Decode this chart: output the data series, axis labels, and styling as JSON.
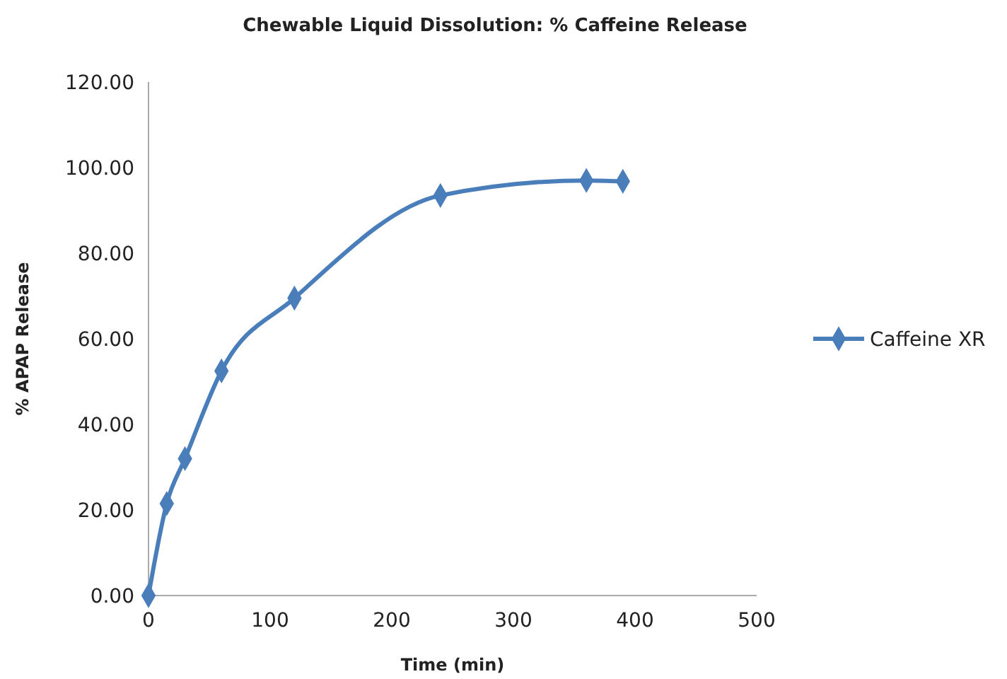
{
  "chart_data": {
    "type": "line",
    "title": "Chewable Liquid Dissolution: % Caffeine Release",
    "xlabel": "Time (min)",
    "ylabel": "% APAP Release",
    "x": [
      0,
      15,
      30,
      60,
      120,
      240,
      360,
      390
    ],
    "series": [
      {
        "name": "Caffeine XR",
        "color": "#4a7ebb",
        "values": [
          0,
          21.5,
          32,
          52.5,
          69.5,
          93.5,
          97,
          96.8
        ]
      }
    ],
    "xlim": [
      0,
      500
    ],
    "xticks": [
      0,
      100,
      200,
      300,
      400,
      500
    ],
    "ylim": [
      0,
      120
    ],
    "yticks": [
      {
        "value": 0,
        "label": "0.00"
      },
      {
        "value": 20,
        "label": "20.00"
      },
      {
        "value": 40,
        "label": "40.00"
      },
      {
        "value": 60,
        "label": "60.00"
      },
      {
        "value": 80,
        "label": "80.00"
      },
      {
        "value": 100,
        "label": "100.00"
      },
      {
        "value": 120,
        "label": "120.00"
      }
    ],
    "marker": "diamond",
    "line_style": "solid",
    "legend": "right"
  }
}
